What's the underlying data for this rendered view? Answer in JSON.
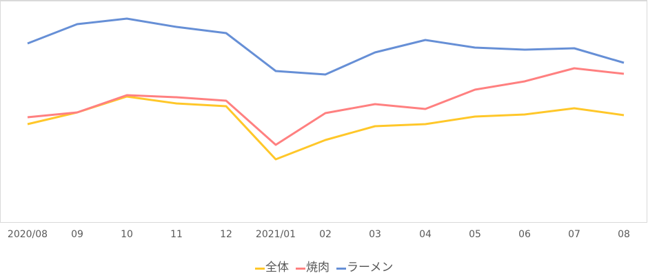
{
  "chart_data": {
    "type": "line",
    "title": "",
    "xlabel": "",
    "ylabel": "",
    "categories": [
      "2020/08",
      "09",
      "10",
      "11",
      "12",
      "2021/01",
      "02",
      "03",
      "04",
      "05",
      "06",
      "07",
      "08"
    ],
    "y_note": "No y-axis shown; values are relative heights estimated from pixel positions (0 = plot bottom, ~320 = plot top)",
    "ylim": [
      0,
      320
    ],
    "grid": false,
    "legend_position": "bottom",
    "series": [
      {
        "name": "全体",
        "color": "#FFC729",
        "values": [
          142,
          159,
          182,
          172,
          168,
          91,
          119,
          139,
          142,
          153,
          156,
          165,
          155
        ]
      },
      {
        "name": "焼肉",
        "color": "#FF8080",
        "values": [
          152,
          159,
          184,
          181,
          176,
          112,
          158,
          171,
          164,
          192,
          204,
          223,
          215
        ]
      },
      {
        "name": "ラーメン",
        "color": "#668FD6",
        "values": [
          259,
          287,
          295,
          283,
          274,
          219,
          214,
          246,
          264,
          253,
          250,
          252,
          231
        ]
      }
    ]
  },
  "axis": {
    "x_ticks": [
      "2020/08",
      "09",
      "10",
      "11",
      "12",
      "2021/01",
      "02",
      "03",
      "04",
      "05",
      "06",
      "07",
      "08"
    ]
  },
  "legend": {
    "items": [
      {
        "label": "全体",
        "color": "#FFC729"
      },
      {
        "label": "焼肉",
        "color": "#FF8080"
      },
      {
        "label": "ラーメン",
        "color": "#668FD6"
      }
    ]
  }
}
